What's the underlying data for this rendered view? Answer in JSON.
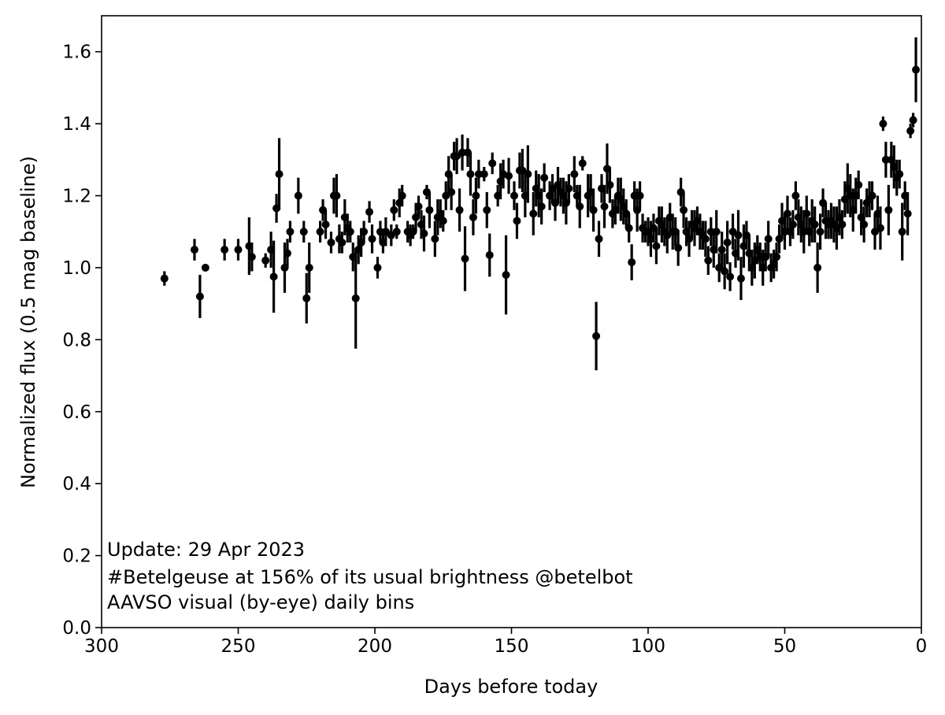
{
  "chart_data": {
    "type": "scatter",
    "xlabel": "Days before today",
    "ylabel": "Normalized flux (0.5 mag baseline)",
    "xlim": [
      300,
      0
    ],
    "ylim": [
      0.0,
      1.7
    ],
    "x_ticks": [
      300,
      250,
      200,
      150,
      100,
      50,
      0
    ],
    "y_ticks": [
      "0.0",
      "0.2",
      "0.4",
      "0.6",
      "0.8",
      "1.0",
      "1.2",
      "1.4",
      "1.6"
    ],
    "grid": false,
    "legend": "none",
    "marker_color": "#000000",
    "annotations": [
      "Update: 29 Apr 2023",
      "#Betelgeuse at 156% of its usual brightness @betelbot",
      "AAVSO visual (by-eye) daily bins"
    ],
    "series": [
      {
        "points": [
          [
            277,
            0.97,
            0.02
          ],
          [
            266,
            1.05,
            0.03
          ],
          [
            264,
            0.92,
            0.06
          ],
          [
            262,
            1.0,
            0.01
          ],
          [
            255,
            1.05,
            0.03
          ],
          [
            250,
            1.05,
            0.03
          ],
          [
            246,
            1.06,
            0.08
          ],
          [
            245,
            1.03,
            0.04
          ],
          [
            240,
            1.02,
            0.02
          ],
          [
            238,
            1.05,
            0.05
          ],
          [
            237,
            0.975,
            0.1
          ],
          [
            236,
            1.165,
            0.04
          ],
          [
            235,
            1.26,
            0.1
          ],
          [
            233,
            1.0,
            0.07
          ],
          [
            232,
            1.04,
            0.04
          ],
          [
            231,
            1.1,
            0.03
          ],
          [
            228,
            1.2,
            0.05
          ],
          [
            226,
            1.1,
            0.03
          ],
          [
            225,
            0.915,
            0.07
          ],
          [
            224,
            1.0,
            0.07
          ],
          [
            220,
            1.1,
            0.03
          ],
          [
            219,
            1.16,
            0.03
          ],
          [
            218,
            1.12,
            0.04
          ],
          [
            216,
            1.07,
            0.03
          ],
          [
            215,
            1.2,
            0.05
          ],
          [
            214,
            1.2,
            0.06
          ],
          [
            213,
            1.08,
            0.04
          ],
          [
            212,
            1.07,
            0.03
          ],
          [
            211,
            1.14,
            0.05
          ],
          [
            210,
            1.11,
            0.04
          ],
          [
            209,
            1.1,
            0.03
          ],
          [
            208,
            1.03,
            0.04
          ],
          [
            207,
            0.915,
            0.14
          ],
          [
            206,
            1.05,
            0.04
          ],
          [
            205,
            1.07,
            0.04
          ],
          [
            204,
            1.1,
            0.03
          ],
          [
            202,
            1.155,
            0.03
          ],
          [
            201,
            1.08,
            0.04
          ],
          [
            199,
            1.0,
            0.03
          ],
          [
            198,
            1.1,
            0.03
          ],
          [
            197,
            1.07,
            0.03
          ],
          [
            196,
            1.1,
            0.04
          ],
          [
            194,
            1.09,
            0.03
          ],
          [
            193,
            1.16,
            0.03
          ],
          [
            192,
            1.1,
            0.02
          ],
          [
            191,
            1.18,
            0.04
          ],
          [
            190,
            1.2,
            0.03
          ],
          [
            188,
            1.1,
            0.03
          ],
          [
            187,
            1.09,
            0.03
          ],
          [
            186,
            1.1,
            0.02
          ],
          [
            185,
            1.14,
            0.04
          ],
          [
            184,
            1.17,
            0.03
          ],
          [
            183,
            1.12,
            0.04
          ],
          [
            182,
            1.095,
            0.05
          ],
          [
            181,
            1.21,
            0.02
          ],
          [
            180,
            1.16,
            0.05
          ],
          [
            178,
            1.08,
            0.05
          ],
          [
            177,
            1.14,
            0.05
          ],
          [
            176,
            1.15,
            0.04
          ],
          [
            175,
            1.13,
            0.03
          ],
          [
            174,
            1.2,
            0.04
          ],
          [
            173,
            1.26,
            0.05
          ],
          [
            172,
            1.21,
            0.05
          ],
          [
            171,
            1.31,
            0.04
          ],
          [
            170,
            1.31,
            0.05
          ],
          [
            169,
            1.16,
            0.06
          ],
          [
            168,
            1.32,
            0.05
          ],
          [
            167,
            1.025,
            0.09
          ],
          [
            166,
            1.32,
            0.04
          ],
          [
            165,
            1.26,
            0.06
          ],
          [
            164,
            1.14,
            0.05
          ],
          [
            163,
            1.2,
            0.05
          ],
          [
            162,
            1.26,
            0.04
          ],
          [
            160,
            1.26,
            0.02
          ],
          [
            159,
            1.16,
            0.05
          ],
          [
            158,
            1.035,
            0.06
          ],
          [
            157,
            1.29,
            0.03
          ],
          [
            155,
            1.2,
            0.03
          ],
          [
            154,
            1.24,
            0.05
          ],
          [
            153,
            1.26,
            0.04
          ],
          [
            152,
            0.98,
            0.11
          ],
          [
            151,
            1.255,
            0.05
          ],
          [
            149,
            1.2,
            0.04
          ],
          [
            148,
            1.13,
            0.05
          ],
          [
            147,
            1.27,
            0.05
          ],
          [
            146,
            1.27,
            0.06
          ],
          [
            145,
            1.2,
            0.06
          ],
          [
            144,
            1.26,
            0.08
          ],
          [
            142,
            1.15,
            0.06
          ],
          [
            141,
            1.22,
            0.05
          ],
          [
            140,
            1.2,
            0.06
          ],
          [
            139,
            1.17,
            0.05
          ],
          [
            138,
            1.25,
            0.04
          ],
          [
            136,
            1.2,
            0.04
          ],
          [
            135,
            1.22,
            0.04
          ],
          [
            134,
            1.18,
            0.05
          ],
          [
            133,
            1.23,
            0.05
          ],
          [
            132,
            1.21,
            0.04
          ],
          [
            131,
            1.2,
            0.05
          ],
          [
            130,
            1.18,
            0.06
          ],
          [
            129,
            1.22,
            0.04
          ],
          [
            127,
            1.26,
            0.05
          ],
          [
            126,
            1.2,
            0.03
          ],
          [
            125,
            1.17,
            0.06
          ],
          [
            124,
            1.29,
            0.02
          ],
          [
            122,
            1.2,
            0.06
          ],
          [
            121,
            1.21,
            0.05
          ],
          [
            120,
            1.16,
            0.06
          ],
          [
            119,
            0.81,
            0.095
          ],
          [
            118,
            1.08,
            0.05
          ],
          [
            117,
            1.22,
            0.04
          ],
          [
            116,
            1.17,
            0.06
          ],
          [
            115,
            1.275,
            0.07
          ],
          [
            114,
            1.23,
            0.05
          ],
          [
            113,
            1.15,
            0.04
          ],
          [
            112,
            1.16,
            0.04
          ],
          [
            111,
            1.2,
            0.05
          ],
          [
            110,
            1.19,
            0.06
          ],
          [
            109,
            1.17,
            0.05
          ],
          [
            108,
            1.15,
            0.04
          ],
          [
            107,
            1.11,
            0.04
          ],
          [
            106,
            1.015,
            0.05
          ],
          [
            105,
            1.2,
            0.04
          ],
          [
            104,
            1.16,
            0.06
          ],
          [
            103,
            1.2,
            0.04
          ],
          [
            102,
            1.11,
            0.04
          ],
          [
            101,
            1.1,
            0.03
          ],
          [
            100,
            1.1,
            0.04
          ],
          [
            99,
            1.08,
            0.05
          ],
          [
            98,
            1.11,
            0.04
          ],
          [
            97,
            1.06,
            0.05
          ],
          [
            96,
            1.13,
            0.04
          ],
          [
            95,
            1.12,
            0.05
          ],
          [
            94,
            1.1,
            0.04
          ],
          [
            93,
            1.09,
            0.05
          ],
          [
            92,
            1.14,
            0.04
          ],
          [
            91,
            1.1,
            0.05
          ],
          [
            90,
            1.1,
            0.04
          ],
          [
            89,
            1.055,
            0.05
          ],
          [
            88,
            1.21,
            0.04
          ],
          [
            87,
            1.16,
            0.05
          ],
          [
            86,
            1.1,
            0.04
          ],
          [
            85,
            1.08,
            0.05
          ],
          [
            84,
            1.12,
            0.04
          ],
          [
            83,
            1.11,
            0.05
          ],
          [
            82,
            1.13,
            0.04
          ],
          [
            81,
            1.1,
            0.05
          ],
          [
            80,
            1.09,
            0.04
          ],
          [
            79,
            1.08,
            0.05
          ],
          [
            78,
            1.02,
            0.04
          ],
          [
            77,
            1.1,
            0.04
          ],
          [
            76,
            1.05,
            0.05
          ],
          [
            75,
            1.1,
            0.06
          ],
          [
            74,
            1.0,
            0.04
          ],
          [
            73,
            1.05,
            0.05
          ],
          [
            72,
            0.99,
            0.05
          ],
          [
            71,
            1.07,
            0.06
          ],
          [
            70,
            0.975,
            0.04
          ],
          [
            69,
            1.1,
            0.05
          ],
          [
            68,
            1.04,
            0.04
          ],
          [
            67,
            1.09,
            0.07
          ],
          [
            66,
            0.97,
            0.06
          ],
          [
            65,
            1.06,
            0.06
          ],
          [
            64,
            1.09,
            0.04
          ],
          [
            63,
            1.04,
            0.05
          ],
          [
            62,
            1.0,
            0.05
          ],
          [
            61,
            1.02,
            0.05
          ],
          [
            60,
            1.05,
            0.04
          ],
          [
            59,
            1.03,
            0.04
          ],
          [
            58,
            1.0,
            0.05
          ],
          [
            57,
            1.03,
            0.04
          ],
          [
            56,
            1.08,
            0.05
          ],
          [
            55,
            1.0,
            0.04
          ],
          [
            54,
            1.01,
            0.04
          ],
          [
            53,
            1.03,
            0.04
          ],
          [
            52,
            1.08,
            0.04
          ],
          [
            51,
            1.13,
            0.05
          ],
          [
            50,
            1.1,
            0.05
          ],
          [
            49,
            1.15,
            0.05
          ],
          [
            48,
            1.1,
            0.04
          ],
          [
            47,
            1.12,
            0.04
          ],
          [
            46,
            1.2,
            0.04
          ],
          [
            45,
            1.14,
            0.05
          ],
          [
            44,
            1.12,
            0.05
          ],
          [
            43,
            1.1,
            0.06
          ],
          [
            42,
            1.15,
            0.05
          ],
          [
            41,
            1.1,
            0.04
          ],
          [
            40,
            1.13,
            0.06
          ],
          [
            39,
            1.12,
            0.05
          ],
          [
            38,
            1.0,
            0.07
          ],
          [
            37,
            1.1,
            0.05
          ],
          [
            36,
            1.18,
            0.04
          ],
          [
            35,
            1.13,
            0.05
          ],
          [
            34,
            1.12,
            0.04
          ],
          [
            33,
            1.13,
            0.05
          ],
          [
            32,
            1.12,
            0.05
          ],
          [
            31,
            1.11,
            0.06
          ],
          [
            30,
            1.14,
            0.05
          ],
          [
            29,
            1.12,
            0.04
          ],
          [
            28,
            1.19,
            0.05
          ],
          [
            27,
            1.22,
            0.07
          ],
          [
            26,
            1.2,
            0.06
          ],
          [
            25,
            1.16,
            0.06
          ],
          [
            24,
            1.2,
            0.05
          ],
          [
            23,
            1.23,
            0.04
          ],
          [
            22,
            1.14,
            0.05
          ],
          [
            21,
            1.12,
            0.05
          ],
          [
            20,
            1.18,
            0.04
          ],
          [
            19,
            1.19,
            0.05
          ],
          [
            18,
            1.2,
            0.04
          ],
          [
            17,
            1.1,
            0.05
          ],
          [
            16,
            1.15,
            0.05
          ],
          [
            15,
            1.11,
            0.06
          ],
          [
            14,
            1.4,
            0.02
          ],
          [
            13,
            1.3,
            0.05
          ],
          [
            12,
            1.16,
            0.07
          ],
          [
            11,
            1.3,
            0.05
          ],
          [
            10,
            1.28,
            0.06
          ],
          [
            9,
            1.25,
            0.05
          ],
          [
            8,
            1.26,
            0.04
          ],
          [
            7,
            1.1,
            0.08
          ],
          [
            6,
            1.2,
            0.04
          ],
          [
            5,
            1.15,
            0.06
          ],
          [
            4,
            1.38,
            0.02
          ],
          [
            3,
            1.41,
            0.02
          ],
          [
            2,
            1.55,
            0.09
          ]
        ]
      }
    ]
  }
}
